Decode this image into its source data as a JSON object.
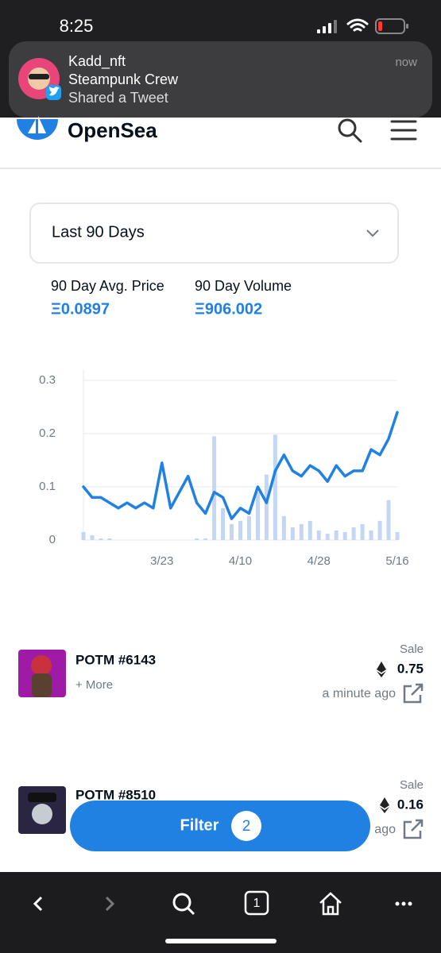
{
  "status_bar": {
    "time": "8:25"
  },
  "notification": {
    "title": "Kadd_nft",
    "subtitle": "Steampunk Crew",
    "body": "Shared a Tweet",
    "time": "now"
  },
  "header": {
    "brand": "OpenSea"
  },
  "period_select": {
    "label": "Last 90 Days"
  },
  "stats": [
    {
      "label": "90 Day Avg. Price",
      "value": "Ξ0.0897"
    },
    {
      "label": "90 Day Volume",
      "value": "Ξ906.002"
    }
  ],
  "chart_data": {
    "type": "line",
    "categories": [
      null,
      null,
      null,
      null,
      null,
      null,
      null,
      null,
      null,
      "3/23",
      null,
      null,
      null,
      null,
      null,
      null,
      null,
      null,
      "4/10",
      null,
      null,
      null,
      null,
      null,
      null,
      null,
      null,
      "4/28",
      null,
      null,
      null,
      null,
      null,
      null,
      null,
      null,
      "5/16"
    ],
    "series": [
      {
        "type": "bar",
        "axis": "y2",
        "color": "#c3d7f5",
        "values": [
          5,
          3,
          1,
          1,
          0,
          0,
          0,
          0,
          0,
          0,
          0,
          0,
          0,
          1,
          1,
          65,
          20,
          10,
          12,
          15,
          30,
          41,
          66,
          15,
          8,
          10,
          12,
          6,
          4,
          6,
          5,
          8,
          10,
          6,
          12,
          25,
          5
        ]
      },
      {
        "color": "#2081e2",
        "values": [
          0.1,
          0.08,
          0.08,
          0.07,
          0.06,
          0.07,
          0.06,
          0.07,
          0.06,
          0.145,
          0.06,
          0.09,
          0.12,
          0.07,
          0.05,
          0.09,
          0.08,
          0.04,
          0.06,
          0.05,
          0.1,
          0.07,
          0.13,
          0.16,
          0.13,
          0.12,
          0.14,
          0.13,
          0.11,
          0.14,
          0.12,
          0.13,
          0.13,
          0.17,
          0.16,
          0.19,
          0.24
        ]
      }
    ],
    "ylim": [
      0,
      0.3
    ],
    "yticks": [
      0,
      0.1,
      0.2,
      0.3
    ],
    "y2lim": [
      0,
      100
    ],
    "grid": true
  },
  "activity": [
    {
      "name": "POTM #6143",
      "more": "+ More",
      "event": "Sale",
      "price": "0.75",
      "time": "a minute ago"
    },
    {
      "name": "POTM #8510",
      "event": "Sale",
      "price": "0.16",
      "time": "ago"
    }
  ],
  "filter": {
    "label": "Filter",
    "count": "2"
  },
  "toolbar": {
    "tabs": "1"
  }
}
